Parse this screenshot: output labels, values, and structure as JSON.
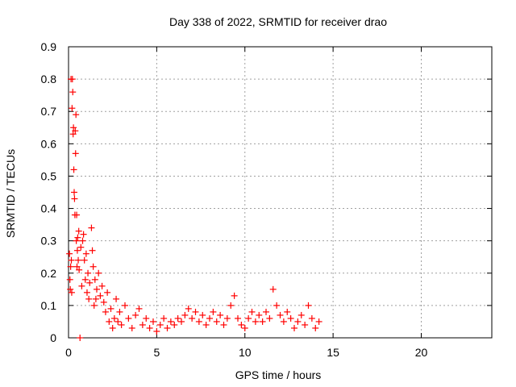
{
  "chart_data": {
    "type": "scatter",
    "title": "Day 338 of 2022, SRMTID for receiver drao",
    "xlabel": "GPS time / hours",
    "ylabel": "SRMTID / TECUs",
    "xlim": [
      0,
      24
    ],
    "ylim": [
      0,
      0.9
    ],
    "x_ticks": [
      0,
      5,
      10,
      15,
      20
    ],
    "y_ticks": [
      0,
      0.1,
      0.2,
      0.3,
      0.4,
      0.5,
      0.6,
      0.7,
      0.8,
      0.9
    ],
    "x_tick_labels": [
      "0",
      "5",
      "10",
      "15",
      "20"
    ],
    "y_tick_labels": [
      "0",
      "0.1",
      "0.2",
      "0.3",
      "0.4",
      "0.5",
      "0.6",
      "0.7",
      "0.8",
      "0.9"
    ],
    "grid": true,
    "marker": "+",
    "series": [
      {
        "name": "drao",
        "color": "#ff0000",
        "points": [
          [
            0.05,
            0.26
          ],
          [
            0.08,
            0.18
          ],
          [
            0.1,
            0.15
          ],
          [
            0.12,
            0.22
          ],
          [
            0.14,
            0.8
          ],
          [
            0.16,
            0.24
          ],
          [
            0.18,
            0.14
          ],
          [
            0.2,
            0.71
          ],
          [
            0.22,
            0.8
          ],
          [
            0.24,
            0.76
          ],
          [
            0.26,
            0.63
          ],
          [
            0.28,
            0.65
          ],
          [
            0.3,
            0.52
          ],
          [
            0.32,
            0.45
          ],
          [
            0.34,
            0.43
          ],
          [
            0.36,
            0.38
          ],
          [
            0.38,
            0.64
          ],
          [
            0.4,
            0.57
          ],
          [
            0.42,
            0.69
          ],
          [
            0.44,
            0.3
          ],
          [
            0.46,
            0.38
          ],
          [
            0.48,
            0.22
          ],
          [
            0.5,
            0.27
          ],
          [
            0.52,
            0.31
          ],
          [
            0.55,
            0.24
          ],
          [
            0.58,
            0.33
          ],
          [
            0.6,
            0.21
          ],
          [
            0.65,
            0.0
          ],
          [
            0.7,
            0.28
          ],
          [
            0.75,
            0.16
          ],
          [
            0.8,
            0.3
          ],
          [
            0.85,
            0.32
          ],
          [
            0.9,
            0.24
          ],
          [
            0.95,
            0.18
          ],
          [
            1.0,
            0.26
          ],
          [
            1.05,
            0.14
          ],
          [
            1.1,
            0.2
          ],
          [
            1.15,
            0.12
          ],
          [
            1.2,
            0.17
          ],
          [
            1.3,
            0.34
          ],
          [
            1.35,
            0.27
          ],
          [
            1.4,
            0.22
          ],
          [
            1.45,
            0.1
          ],
          [
            1.5,
            0.18
          ],
          [
            1.55,
            0.12
          ],
          [
            1.6,
            0.15
          ],
          [
            1.7,
            0.2
          ],
          [
            1.8,
            0.13
          ],
          [
            1.9,
            0.16
          ],
          [
            2.0,
            0.11
          ],
          [
            2.1,
            0.08
          ],
          [
            2.2,
            0.14
          ],
          [
            2.3,
            0.05
          ],
          [
            2.4,
            0.09
          ],
          [
            2.5,
            0.03
          ],
          [
            2.6,
            0.06
          ],
          [
            2.7,
            0.12
          ],
          [
            2.8,
            0.05
          ],
          [
            2.9,
            0.08
          ],
          [
            3.0,
            0.04
          ],
          [
            3.2,
            0.1
          ],
          [
            3.4,
            0.06
          ],
          [
            3.6,
            0.03
          ],
          [
            3.8,
            0.07
          ],
          [
            4.0,
            0.09
          ],
          [
            4.2,
            0.04
          ],
          [
            4.4,
            0.06
          ],
          [
            4.6,
            0.03
          ],
          [
            4.8,
            0.05
          ],
          [
            5.0,
            0.02
          ],
          [
            5.2,
            0.04
          ],
          [
            5.4,
            0.06
          ],
          [
            5.6,
            0.03
          ],
          [
            5.8,
            0.05
          ],
          [
            6.0,
            0.04
          ],
          [
            6.2,
            0.06
          ],
          [
            6.4,
            0.05
          ],
          [
            6.6,
            0.07
          ],
          [
            6.8,
            0.09
          ],
          [
            7.0,
            0.06
          ],
          [
            7.2,
            0.08
          ],
          [
            7.4,
            0.05
          ],
          [
            7.6,
            0.07
          ],
          [
            7.8,
            0.04
          ],
          [
            8.0,
            0.06
          ],
          [
            8.2,
            0.08
          ],
          [
            8.4,
            0.05
          ],
          [
            8.6,
            0.07
          ],
          [
            8.8,
            0.04
          ],
          [
            9.0,
            0.06
          ],
          [
            9.2,
            0.1
          ],
          [
            9.4,
            0.13
          ],
          [
            9.6,
            0.06
          ],
          [
            9.8,
            0.04
          ],
          [
            10.0,
            0.03
          ],
          [
            10.2,
            0.06
          ],
          [
            10.4,
            0.08
          ],
          [
            10.6,
            0.05
          ],
          [
            10.8,
            0.07
          ],
          [
            11.0,
            0.05
          ],
          [
            11.2,
            0.08
          ],
          [
            11.4,
            0.06
          ],
          [
            11.6,
            0.15
          ],
          [
            11.8,
            0.1
          ],
          [
            12.0,
            0.07
          ],
          [
            12.2,
            0.05
          ],
          [
            12.4,
            0.08
          ],
          [
            12.6,
            0.06
          ],
          [
            12.8,
            0.03
          ],
          [
            13.0,
            0.05
          ],
          [
            13.2,
            0.07
          ],
          [
            13.4,
            0.04
          ],
          [
            13.6,
            0.1
          ],
          [
            13.8,
            0.06
          ],
          [
            14.0,
            0.03
          ],
          [
            14.2,
            0.05
          ]
        ]
      }
    ]
  }
}
